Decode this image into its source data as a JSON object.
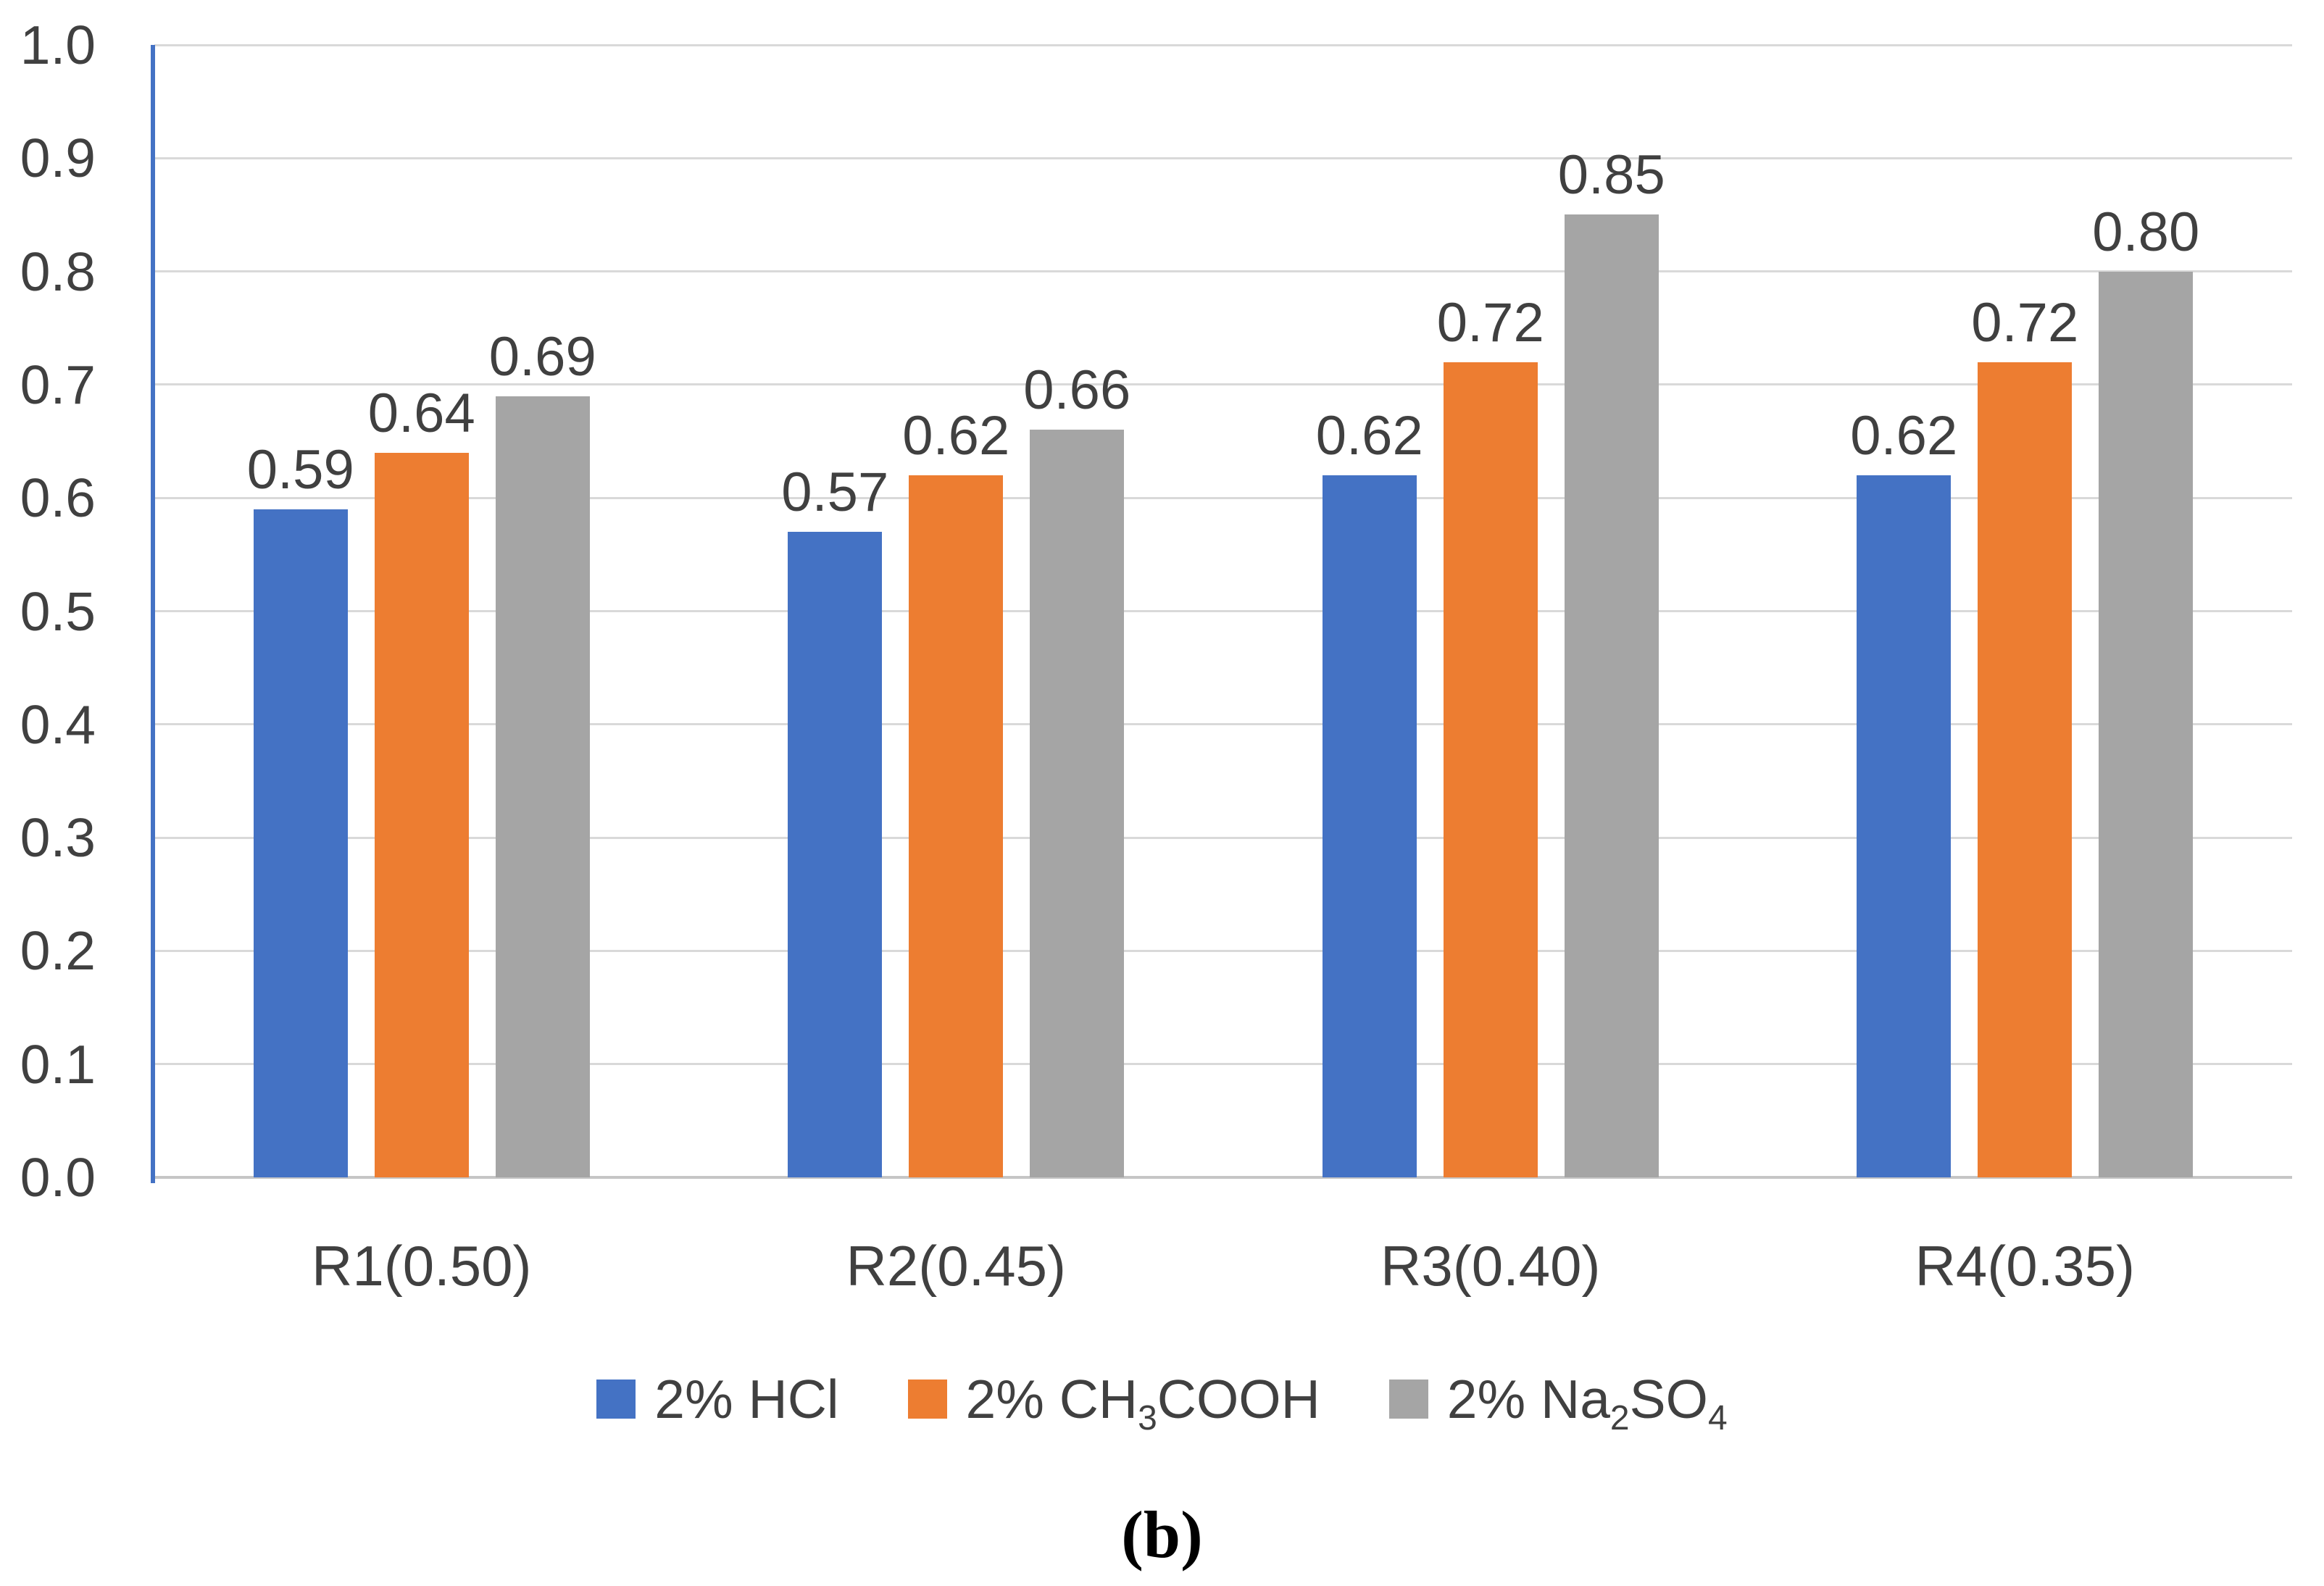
{
  "chart_data": {
    "type": "bar",
    "title": "",
    "xlabel": "",
    "ylabel": "",
    "categories": [
      "R1(0.50)",
      "R2(0.45)",
      "R3(0.40)",
      "R4(0.35)"
    ],
    "series": [
      {
        "name": "2% HCl",
        "color": "#4472c4",
        "values": [
          0.59,
          0.57,
          0.62,
          0.62
        ],
        "labels": [
          "0.59",
          "0.57",
          "0.62",
          "0.62"
        ]
      },
      {
        "name": "2% CH3COOH",
        "color": "#ed7d31",
        "values": [
          0.64,
          0.62,
          0.72,
          0.72
        ],
        "labels": [
          "0.64",
          "0.62",
          "0.72",
          "0.72"
        ]
      },
      {
        "name": "2% Na2SO4",
        "color": "#a5a5a5",
        "values": [
          0.69,
          0.66,
          0.85,
          0.8
        ],
        "labels": [
          "0.69",
          "0.66",
          "0.85",
          "0.80"
        ]
      }
    ],
    "ylim": [
      0.0,
      1.0
    ],
    "ytick_labels": [
      "0.0",
      "0.1",
      "0.2",
      "0.3",
      "0.4",
      "0.5",
      "0.6",
      "0.7",
      "0.8",
      "0.9",
      "1.0"
    ],
    "grid": true,
    "legend_position": "bottom"
  },
  "legend": {
    "items": [
      {
        "color": "#4472c4",
        "segments": [
          {
            "t": "2% HCl",
            "sub": false
          }
        ]
      },
      {
        "color": "#ed7d31",
        "segments": [
          {
            "t": "2% CH",
            "sub": false
          },
          {
            "t": "3",
            "sub": true
          },
          {
            "t": "COOH",
            "sub": false
          }
        ]
      },
      {
        "color": "#a5a5a5",
        "segments": [
          {
            "t": "2% Na",
            "sub": false
          },
          {
            "t": "2",
            "sub": true
          },
          {
            "t": "SO",
            "sub": false
          },
          {
            "t": "4",
            "sub": true
          }
        ]
      }
    ]
  },
  "caption": "(b)",
  "colors": {
    "series_blue": "#4472c4",
    "series_orange": "#ed7d31",
    "series_gray": "#a5a5a5",
    "gridline": "#d9d9d9",
    "axis_line": "#c6c6c6",
    "y_axis_line": "#4472c4",
    "text": "#404040"
  }
}
